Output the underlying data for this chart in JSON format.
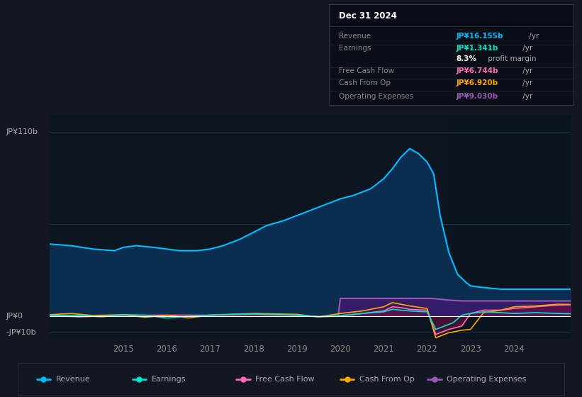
{
  "bg_color": "#131722",
  "chart_bg_color": "#0d1520",
  "title_date": "Dec 31 2024",
  "y_label_top": "JP¥110b",
  "y_label_zero": "JP¥0",
  "y_label_neg": "-JP¥10b",
  "x_ticks": [
    2015,
    2016,
    2017,
    2018,
    2019,
    2020,
    2021,
    2022,
    2023,
    2024
  ],
  "ylim": [
    -14,
    120
  ],
  "xlim": [
    2013.3,
    2025.3
  ],
  "legend": [
    {
      "label": "Revenue",
      "color": "#00bfff"
    },
    {
      "label": "Earnings",
      "color": "#00e5cc"
    },
    {
      "label": "Free Cash Flow",
      "color": "#ff69b4"
    },
    {
      "label": "Cash From Op",
      "color": "#ffa500"
    },
    {
      "label": "Operating Expenses",
      "color": "#9b59b6"
    }
  ],
  "info_rows": [
    {
      "label": "Revenue",
      "value": "JP¥16.155b",
      "val_color": "#00bfff",
      "suffix": " /yr"
    },
    {
      "label": "Earnings",
      "value": "JP¥1.341b",
      "val_color": "#00e5cc",
      "suffix": " /yr"
    },
    {
      "label": "",
      "value": "8.3%",
      "val_color": "#ffffff",
      "suffix": " profit margin"
    },
    {
      "label": "Free Cash Flow",
      "value": "JP¥6.744b",
      "val_color": "#ff69b4",
      "suffix": " /yr"
    },
    {
      "label": "Cash From Op",
      "value": "JP¥6.920b",
      "val_color": "#ffa500",
      "suffix": " /yr"
    },
    {
      "label": "Operating Expenses",
      "value": "JP¥9.030b",
      "val_color": "#9b59b6",
      "suffix": " /yr"
    }
  ],
  "revenue_x": [
    2013.3,
    2013.8,
    2014.3,
    2014.8,
    2015.0,
    2015.3,
    2015.7,
    2016.0,
    2016.3,
    2016.7,
    2017.0,
    2017.3,
    2017.7,
    2018.0,
    2018.3,
    2018.7,
    2019.0,
    2019.3,
    2019.7,
    2019.9,
    2020.0,
    2020.3,
    2020.7,
    2021.0,
    2021.2,
    2021.4,
    2021.6,
    2021.8,
    2022.0,
    2022.15,
    2022.3,
    2022.5,
    2022.7,
    2022.9,
    2023.0,
    2023.3,
    2023.7,
    2024.0,
    2024.3,
    2024.7,
    2025.0,
    2025.3
  ],
  "revenue_y": [
    43,
    42,
    40,
    39,
    41,
    42,
    41,
    40,
    39,
    39,
    40,
    42,
    46,
    50,
    54,
    57,
    60,
    63,
    67,
    69,
    70,
    72,
    76,
    82,
    88,
    95,
    100,
    97,
    92,
    85,
    60,
    38,
    25,
    20,
    18,
    17,
    16,
    16,
    16,
    16,
    16,
    16
  ],
  "earnings_x": [
    2013.3,
    2014.0,
    2014.5,
    2015.0,
    2015.5,
    2016.0,
    2016.5,
    2017.0,
    2017.5,
    2018.0,
    2018.5,
    2019.0,
    2019.5,
    2020.0,
    2020.5,
    2021.0,
    2021.2,
    2021.4,
    2021.6,
    2022.0,
    2022.2,
    2022.4,
    2022.6,
    2022.8,
    2023.0,
    2023.3,
    2023.7,
    2024.0,
    2024.5,
    2025.0,
    2025.3
  ],
  "earnings_y": [
    0.5,
    0.3,
    -0.5,
    0.8,
    0.5,
    -1.2,
    -0.3,
    0.5,
    1.0,
    1.2,
    0.8,
    0.5,
    -0.3,
    0.2,
    1.5,
    2.5,
    4.0,
    3.5,
    3.0,
    2.5,
    -8.0,
    -6.0,
    -4.0,
    0.5,
    1.5,
    2.5,
    2.0,
    1.5,
    2.0,
    1.5,
    1.3
  ],
  "fcf_x": [
    2013.3,
    2014.0,
    2015.0,
    2016.0,
    2017.0,
    2018.0,
    2019.0,
    2019.5,
    2020.0,
    2020.5,
    2021.0,
    2021.2,
    2021.4,
    2021.6,
    2022.0,
    2022.2,
    2022.5,
    2022.8,
    2023.0,
    2023.3,
    2023.7,
    2024.0,
    2024.5,
    2025.0,
    2025.3
  ],
  "fcf_y": [
    0.3,
    -0.5,
    0.5,
    0.5,
    0.5,
    1.0,
    0.5,
    -0.5,
    0.0,
    1.5,
    3.0,
    5.5,
    5.0,
    4.0,
    3.5,
    -11.0,
    -8.0,
    -6.0,
    1.5,
    3.5,
    3.5,
    4.5,
    5.5,
    6.5,
    6.7
  ],
  "cop_x": [
    2013.3,
    2013.8,
    2014.3,
    2015.0,
    2015.5,
    2016.0,
    2016.5,
    2017.0,
    2018.0,
    2019.0,
    2019.5,
    2020.0,
    2020.5,
    2021.0,
    2021.2,
    2021.4,
    2021.6,
    2022.0,
    2022.2,
    2022.5,
    2022.8,
    2023.0,
    2023.3,
    2023.7,
    2024.0,
    2024.5,
    2025.0,
    2025.3
  ],
  "cop_y": [
    0.8,
    1.5,
    0.3,
    0.8,
    -0.8,
    0.5,
    -1.2,
    0.5,
    1.5,
    1.0,
    -0.5,
    1.5,
    3.0,
    5.5,
    8.0,
    7.0,
    6.0,
    4.5,
    -13.0,
    -10.0,
    -8.5,
    -8.0,
    2.0,
    3.5,
    5.5,
    6.0,
    7.0,
    6.9
  ],
  "opex_x": [
    2019.95,
    2020.0,
    2020.5,
    2021.0,
    2021.5,
    2022.0,
    2022.1,
    2022.5,
    2022.8,
    2023.0,
    2023.5,
    2024.0,
    2024.5,
    2025.0,
    2025.3
  ],
  "opex_y": [
    0,
    10.5,
    10.5,
    10.5,
    10.5,
    10.5,
    10.5,
    9.5,
    9.0,
    9.0,
    9.0,
    9.0,
    9.0,
    9.0,
    9.0
  ]
}
